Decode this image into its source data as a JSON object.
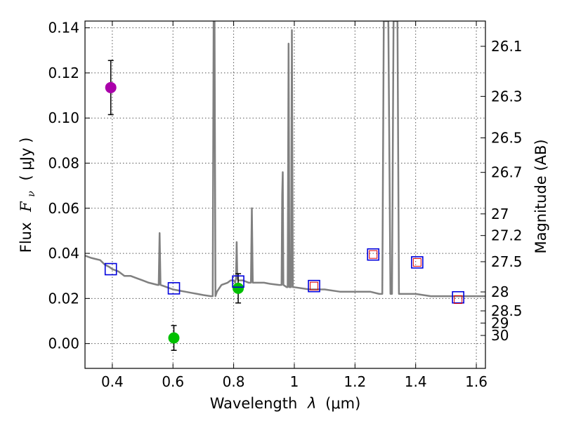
{
  "chart_data": {
    "type": "scatter",
    "xlabel_main": "Wavelength",
    "xlabel_var": "λ",
    "xlabel_unit": "(μm)",
    "ylabel_main": "Flux",
    "ylabel_var": "F",
    "ylabel_sub": "ν",
    "ylabel_unit": "( μJy )",
    "y2label": "Magnitude (AB)",
    "xlim": [
      0.31,
      1.63
    ],
    "ylim": [
      -0.011,
      0.143
    ],
    "grid": true,
    "xticks": [
      0.4,
      0.6,
      0.8,
      1.0,
      1.2,
      1.4,
      1.6
    ],
    "xtick_labels": [
      "0.4",
      "0.6",
      "0.8",
      "1",
      "1.2",
      "1.4",
      "1.6"
    ],
    "yticks": [
      0.0,
      0.02,
      0.04,
      0.06,
      0.08,
      0.1,
      0.12,
      0.14
    ],
    "ytick_labels": [
      "0.00",
      "0.02",
      "0.04",
      "0.06",
      "0.08",
      "0.10",
      "0.12",
      "0.14"
    ],
    "magnitude_ticks": [
      {
        "label": "26.1",
        "flux": 0.1318
      },
      {
        "label": "26.3",
        "flux": 0.1096
      },
      {
        "label": "26.5",
        "flux": 0.0912
      },
      {
        "label": "26.7",
        "flux": 0.0759
      },
      {
        "label": "27",
        "flux": 0.0575
      },
      {
        "label": "27.2",
        "flux": 0.0479
      },
      {
        "label": "27.5",
        "flux": 0.0363
      },
      {
        "label": "28",
        "flux": 0.0229
      },
      {
        "label": "28.5",
        "flux": 0.0145
      },
      {
        "label": "29",
        "flux": 0.0091
      },
      {
        "label": "30",
        "flux": 0.0036
      }
    ],
    "series": [
      {
        "name": "model spectrum",
        "kind": "line",
        "color": "#808080",
        "points": [
          [
            0.31,
            0.039
          ],
          [
            0.33,
            0.038
          ],
          [
            0.345,
            0.0375
          ],
          [
            0.36,
            0.037
          ],
          [
            0.375,
            0.035
          ],
          [
            0.39,
            0.034
          ],
          [
            0.4,
            0.033
          ],
          [
            0.42,
            0.032
          ],
          [
            0.44,
            0.03
          ],
          [
            0.46,
            0.03
          ],
          [
            0.48,
            0.029
          ],
          [
            0.5,
            0.028
          ],
          [
            0.52,
            0.027
          ],
          [
            0.55,
            0.026
          ],
          [
            0.553,
            0.026
          ],
          [
            0.556,
            0.049
          ],
          [
            0.559,
            0.026
          ],
          [
            0.58,
            0.025
          ],
          [
            0.6,
            0.024
          ],
          [
            0.62,
            0.0235
          ],
          [
            0.64,
            0.023
          ],
          [
            0.66,
            0.0225
          ],
          [
            0.68,
            0.022
          ],
          [
            0.7,
            0.0215
          ],
          [
            0.725,
            0.021
          ],
          [
            0.731,
            0.021
          ],
          [
            0.734,
            0.143
          ],
          [
            0.737,
            0.143
          ],
          [
            0.74,
            0.021
          ],
          [
            0.745,
            0.023
          ],
          [
            0.76,
            0.026
          ],
          [
            0.78,
            0.027
          ],
          [
            0.79,
            0.028
          ],
          [
            0.8,
            0.028
          ],
          [
            0.805,
            0.027
          ],
          [
            0.808,
            0.029
          ],
          [
            0.81,
            0.045
          ],
          [
            0.812,
            0.029
          ],
          [
            0.815,
            0.028
          ],
          [
            0.83,
            0.028
          ],
          [
            0.85,
            0.027
          ],
          [
            0.857,
            0.027
          ],
          [
            0.86,
            0.06
          ],
          [
            0.863,
            0.027
          ],
          [
            0.88,
            0.027
          ],
          [
            0.9,
            0.027
          ],
          [
            0.92,
            0.0265
          ],
          [
            0.95,
            0.026
          ],
          [
            0.958,
            0.026
          ],
          [
            0.96,
            0.066
          ],
          [
            0.962,
            0.076
          ],
          [
            0.964,
            0.026
          ],
          [
            0.975,
            0.025
          ],
          [
            0.978,
            0.025
          ],
          [
            0.981,
            0.133
          ],
          [
            0.984,
            0.025
          ],
          [
            0.989,
            0.025
          ],
          [
            0.992,
            0.139
          ],
          [
            0.995,
            0.025
          ],
          [
            1.0,
            0.025
          ],
          [
            1.05,
            0.024
          ],
          [
            1.1,
            0.024
          ],
          [
            1.15,
            0.023
          ],
          [
            1.2,
            0.023
          ],
          [
            1.25,
            0.023
          ],
          [
            1.28,
            0.022
          ],
          [
            1.29,
            0.022
          ],
          [
            1.295,
            0.143
          ],
          [
            1.31,
            0.143
          ],
          [
            1.317,
            0.022
          ],
          [
            1.322,
            0.022
          ],
          [
            1.327,
            0.143
          ],
          [
            1.34,
            0.143
          ],
          [
            1.345,
            0.022
          ],
          [
            1.4,
            0.022
          ],
          [
            1.45,
            0.021
          ],
          [
            1.5,
            0.021
          ],
          [
            1.55,
            0.021
          ],
          [
            1.6,
            0.021
          ],
          [
            1.63,
            0.021
          ]
        ]
      },
      {
        "name": "observed photometry (green)",
        "kind": "points",
        "color": "#00c000",
        "points": [
          {
            "x": 0.603,
            "y": 0.0025,
            "err": 0.0055
          },
          {
            "x": 0.815,
            "y": 0.0245,
            "err": 0.0065
          }
        ]
      },
      {
        "name": "observed photometry (magenta)",
        "kind": "points",
        "color": "#aa00aa",
        "points": [
          {
            "x": 0.395,
            "y": 0.1135,
            "err": 0.012
          }
        ]
      },
      {
        "name": "model photometry (blue)",
        "kind": "squares",
        "color": "#0000dd",
        "points": [
          {
            "x": 0.395,
            "y": 0.033
          },
          {
            "x": 0.603,
            "y": 0.0245
          },
          {
            "x": 0.815,
            "y": 0.0275
          },
          {
            "x": 1.065,
            "y": 0.0255
          },
          {
            "x": 1.26,
            "y": 0.0395
          },
          {
            "x": 1.405,
            "y": 0.036
          },
          {
            "x": 1.54,
            "y": 0.0205
          }
        ]
      },
      {
        "name": "model photometry (red)",
        "kind": "squares_small",
        "color": "#dd0000",
        "points": [
          {
            "x": 1.065,
            "y": 0.0255
          },
          {
            "x": 1.26,
            "y": 0.0395
          },
          {
            "x": 1.405,
            "y": 0.036
          },
          {
            "x": 1.54,
            "y": 0.0195
          }
        ]
      }
    ]
  }
}
